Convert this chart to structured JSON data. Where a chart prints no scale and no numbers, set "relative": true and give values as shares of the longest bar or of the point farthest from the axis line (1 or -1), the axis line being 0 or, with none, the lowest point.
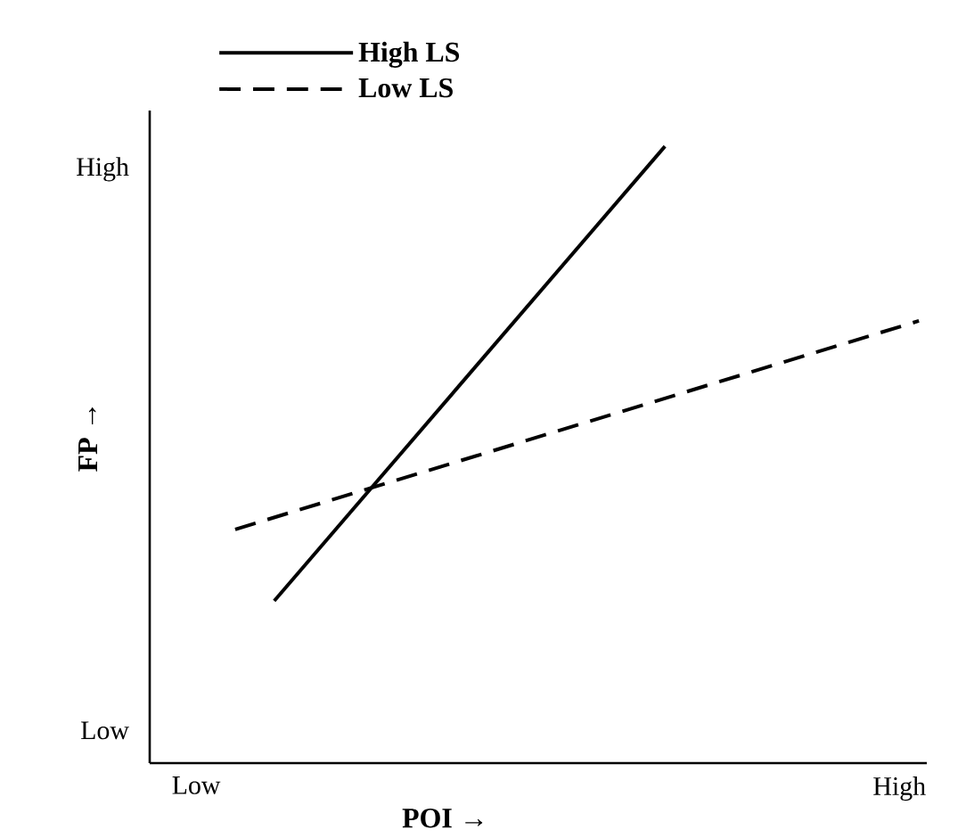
{
  "chart_data": {
    "type": "line",
    "relative": true,
    "xlabel": "POI →",
    "ylabel": "FP →",
    "categories": [
      "Low",
      null,
      null,
      null,
      null,
      null,
      null,
      null,
      null,
      null,
      null,
      null,
      null,
      null,
      null,
      null,
      null,
      null,
      null,
      null,
      null,
      null,
      null,
      null,
      null,
      null,
      null,
      null,
      null,
      null,
      null,
      null,
      null,
      null,
      null,
      null,
      "High",
      null
    ],
    "annotations": [
      "High",
      "Low"
    ],
    "legend": "top left",
    "marker": "none",
    "series": [
      {
        "name": "High LS",
        "color": "#000000",
        "line_style": "solid",
        "values": [
          null,
          null,
          null,
          null,
          0.263,
          null,
          null,
          null,
          null,
          null,
          null,
          null,
          null,
          null,
          null,
          null,
          null,
          null,
          null,
          null,
          null,
          null,
          null,
          null,
          1.0,
          null,
          null,
          null,
          null,
          null,
          null,
          null,
          null,
          null,
          null,
          null,
          null,
          null
        ]
      },
      {
        "name": "Low LS",
        "color": "#000000",
        "line_style": "dashed",
        "values": [
          null,
          null,
          0.379,
          null,
          null,
          null,
          null,
          null,
          null,
          null,
          null,
          null,
          null,
          null,
          null,
          null,
          null,
          null,
          null,
          null,
          null,
          null,
          null,
          null,
          null,
          null,
          null,
          null,
          null,
          null,
          null,
          null,
          null,
          null,
          null,
          null,
          null,
          0.717
        ]
      }
    ]
  }
}
